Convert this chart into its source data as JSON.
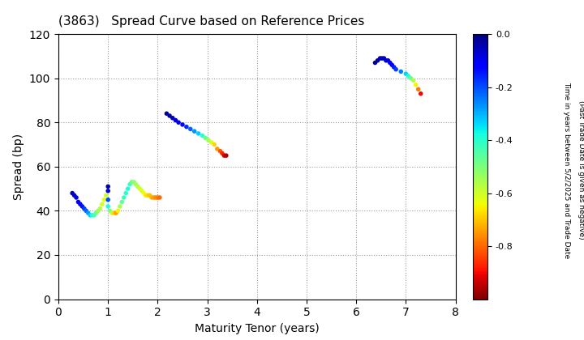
{
  "title": "(3863)   Spread Curve based on Reference Prices",
  "xlabel": "Maturity Tenor (years)",
  "ylabel": "Spread (bp)",
  "colorbar_label": "Time in years between 5/2/2025 and Trade Date\n(Past Trade Date is given as negative)",
  "xlim": [
    0,
    8
  ],
  "ylim": [
    0,
    120
  ],
  "xticks": [
    0,
    1,
    2,
    3,
    4,
    5,
    6,
    7,
    8
  ],
  "yticks": [
    0,
    20,
    40,
    60,
    80,
    100,
    120
  ],
  "clim": [
    -1.0,
    0.0
  ],
  "cticks": [
    0.0,
    -0.2,
    -0.4,
    -0.6,
    -0.8
  ],
  "clusters": [
    {
      "x": [
        0.28,
        0.32,
        0.36,
        0.4,
        0.44,
        0.48,
        0.52,
        0.56,
        0.6,
        0.64,
        0.68,
        0.72,
        0.76,
        0.8,
        0.84,
        0.88,
        0.92,
        0.96,
        1.0,
        1.0,
        1.0,
        1.0,
        1.04,
        1.08,
        1.12,
        1.16,
        1.2,
        1.24,
        1.28,
        1.32,
        1.36,
        1.4,
        1.44,
        1.48,
        1.52,
        1.56,
        1.6,
        1.64,
        1.68,
        1.72,
        1.76,
        1.8,
        1.84,
        1.88,
        1.92,
        1.96,
        2.0,
        2.04
      ],
      "y": [
        48,
        47,
        46,
        44,
        43,
        42,
        41,
        40,
        39,
        38,
        38,
        38,
        39,
        40,
        41,
        43,
        45,
        47,
        51,
        49,
        45,
        42,
        40,
        39,
        39,
        39,
        40,
        42,
        44,
        46,
        48,
        50,
        52,
        53,
        53,
        52,
        51,
        50,
        49,
        48,
        47,
        47,
        47,
        46,
        46,
        46,
        46,
        46
      ],
      "c": [
        -0.04,
        -0.06,
        -0.08,
        -0.1,
        -0.12,
        -0.14,
        -0.18,
        -0.22,
        -0.28,
        -0.33,
        -0.38,
        -0.43,
        -0.48,
        -0.53,
        -0.57,
        -0.6,
        -0.62,
        -0.6,
        -0.04,
        -0.08,
        -0.2,
        -0.38,
        -0.5,
        -0.6,
        -0.68,
        -0.74,
        -0.65,
        -0.55,
        -0.47,
        -0.42,
        -0.4,
        -0.38,
        -0.42,
        -0.48,
        -0.52,
        -0.55,
        -0.57,
        -0.6,
        -0.62,
        -0.64,
        -0.66,
        -0.68,
        -0.7,
        -0.72,
        -0.74,
        -0.76,
        -0.78,
        -0.8
      ]
    },
    {
      "x": [
        2.18,
        2.24,
        2.3,
        2.36,
        2.42,
        2.5,
        2.58,
        2.66,
        2.74,
        2.82,
        2.9,
        2.96,
        3.02,
        3.08,
        3.14,
        3.2,
        3.26,
        3.3,
        3.34,
        3.38
      ],
      "y": [
        84,
        83,
        82,
        81,
        80,
        79,
        78,
        77,
        76,
        75,
        74,
        73,
        72,
        71,
        70,
        68,
        67,
        66,
        65,
        65
      ],
      "c": [
        -0.02,
        -0.04,
        -0.06,
        -0.08,
        -0.1,
        -0.13,
        -0.17,
        -0.22,
        -0.27,
        -0.33,
        -0.4,
        -0.47,
        -0.54,
        -0.61,
        -0.68,
        -0.75,
        -0.82,
        -0.87,
        -0.92,
        -0.96
      ]
    },
    {
      "x": [
        6.38,
        6.43,
        6.48,
        6.52,
        6.56,
        6.6,
        6.64,
        6.68,
        6.72,
        6.76,
        6.8,
        6.9,
        7.0,
        7.05,
        7.1,
        7.15,
        7.2,
        7.25,
        7.3
      ],
      "y": [
        107,
        108,
        109,
        109,
        109,
        108,
        108,
        107,
        106,
        105,
        104,
        103,
        102,
        101,
        100,
        99,
        97,
        95,
        93
      ],
      "c": [
        -0.02,
        -0.03,
        -0.04,
        -0.05,
        -0.06,
        -0.07,
        -0.08,
        -0.1,
        -0.12,
        -0.15,
        -0.18,
        -0.25,
        -0.33,
        -0.4,
        -0.48,
        -0.56,
        -0.65,
        -0.78,
        -0.9
      ]
    }
  ]
}
